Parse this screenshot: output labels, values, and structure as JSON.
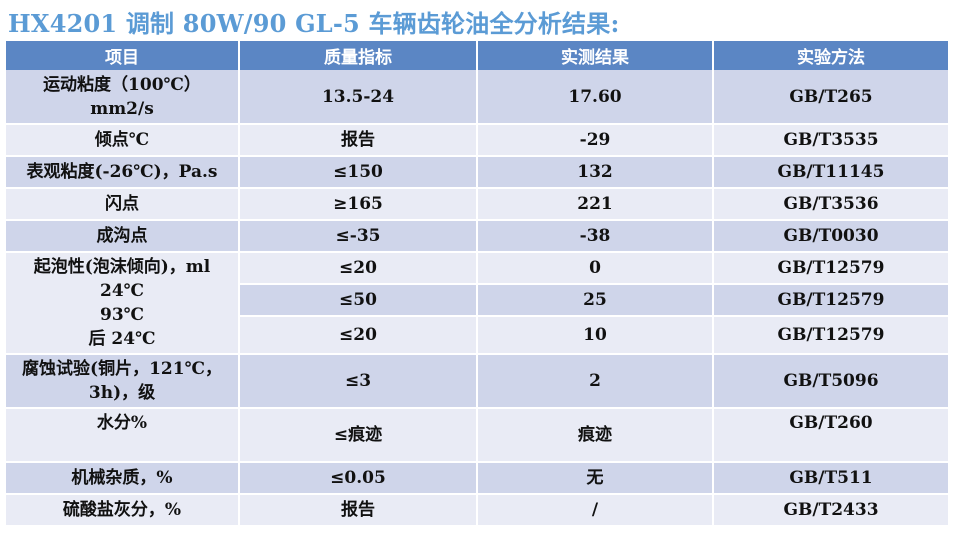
{
  "title": "HX4201 调制 80W/90 GL-5 车辆齿轮油全分析结果:",
  "headers": [
    "项目",
    "质量指标",
    "实测结果",
    "实验方法"
  ],
  "rows": [
    {
      "item_lines": [
        "运动粘度（100℃）",
        "mm2/s"
      ],
      "spec": "13.5-24",
      "result": "17.60",
      "method": "GB/T265"
    },
    {
      "item_lines": [
        "倾点℃"
      ],
      "spec": "报告",
      "result": "-29",
      "method": "GB/T3535"
    },
    {
      "item_lines": [
        "表观粘度(-26℃)，Pa.s"
      ],
      "spec": "≤150",
      "result": "132",
      "method": "GB/T11145"
    },
    {
      "item_lines": [
        "闪点"
      ],
      "spec": "≥165",
      "result": "221",
      "method": "GB/T3536"
    },
    {
      "item_lines": [
        "成沟点"
      ],
      "spec": "≤-35",
      "result": "-38",
      "method": "GB/T0030"
    },
    {
      "item_lines": [
        "起泡性(泡沫倾向)，ml",
        "24℃",
        "93℃",
        "后 24℃"
      ],
      "spec": "≤20",
      "result": "0",
      "method": "GB/T12579"
    },
    {
      "spec": "≤50",
      "result": "25",
      "method": "GB/T12579"
    },
    {
      "spec": "≤20",
      "result": "10",
      "method": "GB/T12579"
    },
    {
      "item_lines": [
        "腐蚀试验(铜片，121℃，",
        "3h)，级"
      ],
      "spec": "≤3",
      "result": "2",
      "method": "GB/T5096"
    },
    {
      "item_lines": [
        "水分%"
      ],
      "spec": "≤痕迹",
      "result": "痕迹",
      "method": "GB/T260"
    },
    {
      "item_lines": [
        "机械杂质，%"
      ],
      "spec": "≤0.05",
      "result": "无",
      "method": "GB/T511"
    },
    {
      "item_lines": [
        "硫酸盐灰分，%"
      ],
      "spec": "报告",
      "result": "/",
      "method": "GB/T2433"
    }
  ]
}
